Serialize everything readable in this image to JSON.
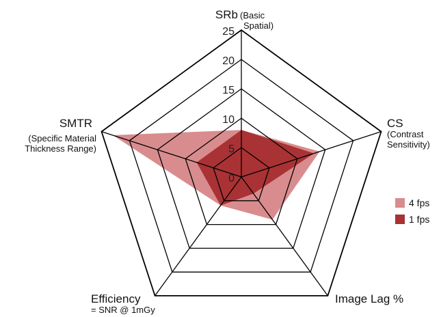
{
  "chart_data": {
    "type": "radar",
    "title": "",
    "rmax": 25,
    "ticks": [
      "0",
      "5",
      "10",
      "15",
      "20",
      "25"
    ],
    "tick_values": [
      0,
      5,
      10,
      15,
      20,
      25
    ],
    "axes": [
      {
        "label": "SRb",
        "sublabel": "(Basic\nSpatial)"
      },
      {
        "label": "CS",
        "sublabel": "(Contrast\nSensitivity)"
      },
      {
        "label": "Image Lag %",
        "sublabel": ""
      },
      {
        "label": "Efficiency",
        "sublabel": "= SNR @ 1mGy"
      },
      {
        "label": "SMTR",
        "sublabel": "(Specific Material\nThickness Range)"
      }
    ],
    "series": [
      {
        "name": "4 fps",
        "color": "#d98c8e",
        "values": [
          8,
          14,
          9,
          6,
          23
        ]
      },
      {
        "name": "1 fps",
        "color": "#a93235",
        "values": [
          8,
          13,
          3.5,
          6,
          8
        ]
      }
    ],
    "legend_position": "right",
    "grid": true
  }
}
